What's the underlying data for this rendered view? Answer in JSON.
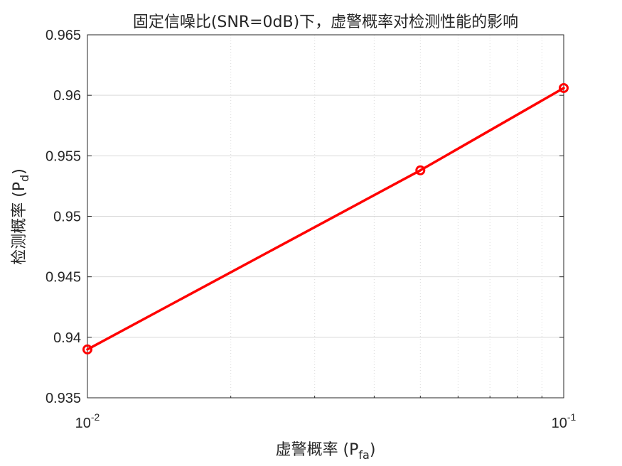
{
  "chart_data": {
    "type": "line",
    "title": "固定信噪比(SNR=0dB)下，虚警概率对检测性能的影响",
    "xlabel": {
      "main": "虚警概率 (P",
      "sub": "fa",
      "close": ")"
    },
    "ylabel": {
      "main": "检测概率 (P",
      "sub": "d",
      "close": ")"
    },
    "xscale": "log",
    "xlim": [
      0.01,
      0.1
    ],
    "ylim": [
      0.935,
      0.965
    ],
    "xticks": [
      {
        "value": 0.01,
        "base": "10",
        "exp": "-2"
      },
      {
        "value": 0.1,
        "base": "10",
        "exp": "-1"
      }
    ],
    "yticks": [
      0.935,
      0.94,
      0.945,
      0.95,
      0.955,
      0.96,
      0.965
    ],
    "ytick_labels": [
      "0.935",
      "0.94",
      "0.945",
      "0.95",
      "0.955",
      "0.96",
      "0.965"
    ],
    "grid": true,
    "series": [
      {
        "x": [
          0.01,
          0.05,
          0.1
        ],
        "values": [
          0.939,
          0.9538,
          0.9606
        ],
        "color": "#ff0000",
        "marker": "circle"
      }
    ]
  }
}
